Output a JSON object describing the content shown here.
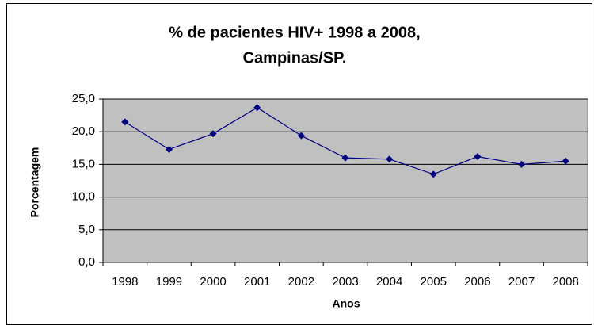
{
  "chart_data": {
    "type": "line",
    "title": "% de pacientes HIV+ 1998 a 2008,",
    "subtitle": "Campinas/SP.",
    "xlabel": "Anos",
    "ylabel": "Porcentagem",
    "categories": [
      "1998",
      "1999",
      "2000",
      "2001",
      "2002",
      "2003",
      "2004",
      "2005",
      "2006",
      "2007",
      "2008"
    ],
    "values": [
      21.5,
      17.3,
      19.7,
      23.7,
      19.4,
      16.0,
      15.8,
      13.5,
      16.2,
      15.0,
      15.5
    ],
    "color": "#000080",
    "ylim": [
      0,
      25
    ],
    "yticks": [
      {
        "value": 0,
        "label": "0,0"
      },
      {
        "value": 5,
        "label": "5,0"
      },
      {
        "value": 10,
        "label": "10,0"
      },
      {
        "value": 15,
        "label": "15,0"
      },
      {
        "value": 20,
        "label": "20,0"
      },
      {
        "value": 25,
        "label": "25,0"
      }
    ],
    "grid": true
  }
}
